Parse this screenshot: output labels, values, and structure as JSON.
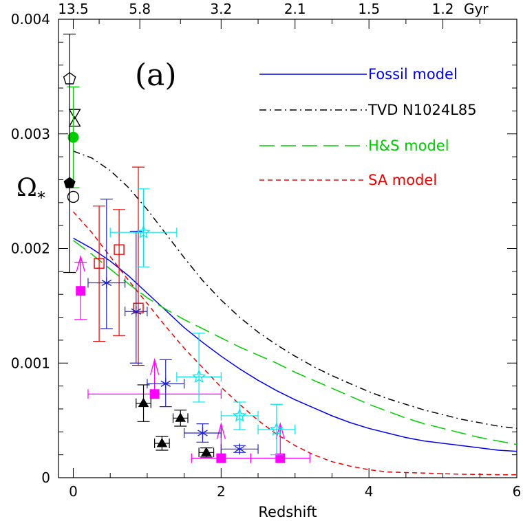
{
  "chart_data": {
    "type": "scatter",
    "panel_label": "(a)",
    "xlabel": "Redshift",
    "ylabel": "Ω",
    "ylabel_subscript": "*",
    "xlim": [
      -0.2,
      6
    ],
    "ylim": [
      0,
      0.004
    ],
    "x_ticks": [
      "0",
      "2",
      "4",
      "6"
    ],
    "y_ticks": [
      "0",
      "0.001",
      "0.002",
      "0.003",
      "0.004"
    ],
    "top_axis": {
      "unit": "Gyr",
      "labels": [
        "13.5",
        "5.8",
        "3.2",
        "2.1",
        "1.5",
        "1.2"
      ],
      "at_redshift": [
        0,
        0.9,
        2.0,
        3.0,
        4.0,
        5.0
      ]
    },
    "curves": [
      {
        "name": "Fossil model",
        "color": "#0000ee",
        "dash": "none",
        "x": [
          0,
          0.25,
          0.5,
          0.75,
          1,
          1.25,
          1.5,
          1.75,
          2,
          2.25,
          2.5,
          2.75,
          3,
          3.25,
          3.5,
          3.75,
          4,
          4.25,
          4.5,
          4.75,
          5,
          5.25,
          5.5,
          5.75,
          6
        ],
        "y": [
          0.00209,
          0.002,
          0.00189,
          0.00176,
          0.00161,
          0.00146,
          0.00131,
          0.00118,
          0.00106,
          0.00095,
          0.00085,
          0.00076,
          0.00068,
          0.00061,
          0.00054,
          0.00048,
          0.00043,
          0.00039,
          0.00035,
          0.00032,
          0.0003,
          0.00028,
          0.00026,
          0.00024,
          0.00023
        ]
      },
      {
        "name": "TVD N1024L85",
        "color": "#000000",
        "dash": "10,5,2,5",
        "x": [
          0,
          0.25,
          0.5,
          0.75,
          1,
          1.25,
          1.5,
          1.75,
          2,
          2.25,
          2.5,
          2.75,
          3,
          3.25,
          3.5,
          3.75,
          4,
          4.25,
          4.5,
          4.75,
          5,
          5.25,
          5.5,
          5.75,
          6
        ],
        "y": [
          0.00285,
          0.00279,
          0.00268,
          0.00253,
          0.00234,
          0.00213,
          0.00192,
          0.00172,
          0.00155,
          0.0014,
          0.00127,
          0.00116,
          0.00106,
          0.00097,
          0.00089,
          0.00082,
          0.00075,
          0.00069,
          0.00064,
          0.00059,
          0.00055,
          0.00051,
          0.00048,
          0.00045,
          0.00043
        ]
      },
      {
        "name": "H&S model",
        "color": "#00cc00",
        "dash": "22,9",
        "x": [
          0,
          0.25,
          0.5,
          0.75,
          1,
          1.25,
          1.5,
          1.75,
          2,
          2.25,
          2.5,
          2.75,
          3,
          3.25,
          3.5,
          3.75,
          4,
          4.25,
          4.5,
          4.75,
          5,
          5.25,
          5.5,
          5.75,
          6
        ],
        "y": [
          0.00207,
          0.00195,
          0.00182,
          0.00169,
          0.00157,
          0.00147,
          0.00138,
          0.0013,
          0.00122,
          0.00114,
          0.00107,
          0.001,
          0.00092,
          0.00085,
          0.00078,
          0.00071,
          0.00064,
          0.00058,
          0.00052,
          0.00047,
          0.00043,
          0.00039,
          0.00035,
          0.00032,
          0.00029
        ]
      },
      {
        "name": "SA model",
        "color": "#ee0000",
        "dash": "7,5",
        "x": [
          0,
          0.25,
          0.5,
          0.75,
          1,
          1.25,
          1.5,
          1.75,
          2,
          2.25,
          2.5,
          2.75,
          3,
          3.25,
          3.5,
          3.75,
          4,
          4.25,
          4.5,
          4.75,
          5,
          5.25,
          5.5,
          5.75,
          6
        ],
        "y": [
          0.00232,
          0.00214,
          0.00193,
          0.00172,
          0.00152,
          0.00132,
          0.00113,
          0.00096,
          0.00079,
          0.00064,
          0.0005,
          0.00038,
          0.00028,
          0.0002,
          0.00014,
          0.0001,
          7e-05,
          5e-05,
          4.5e-05,
          4e-05,
          3.5e-05,
          3e-05,
          2.8e-05,
          2.6e-05,
          2.5e-05
        ]
      }
    ],
    "points": [
      {
        "marker": "open-pentagon",
        "color": "#000000",
        "x": -0.05,
        "y": 0.00348
      },
      {
        "marker": "open-triangle-down",
        "color": "#000000",
        "x": 0.02,
        "y": 0.00318
      },
      {
        "marker": "open-triangle-up",
        "color": "#000000",
        "x": 0.02,
        "y": 0.0031
      },
      {
        "marker": "filled-circle",
        "color": "#00cc00",
        "x": 0.0,
        "y": 0.00297,
        "yerr": [
          0.00044,
          0.00044
        ]
      },
      {
        "marker": "filled-pentagon",
        "color": "#000000",
        "x": -0.05,
        "y": 0.00257
      },
      {
        "marker": "open-circle",
        "color": "#000000",
        "x": 0.0,
        "y": 0.00245
      },
      {
        "marker": "none",
        "color": "#000000",
        "x": -0.05,
        "y": 0.00283,
        "yerr": [
          0.00104,
          0.00104
        ]
      },
      {
        "marker": "filled-square",
        "color": "#ff00ff",
        "x": 0.1,
        "y": 0.00163,
        "yerr": [
          0.00025,
          0.00025
        ],
        "arrow_up": true
      },
      {
        "marker": "filled-square",
        "color": "#ff00ff",
        "x": 1.1,
        "y": 0.00073,
        "xerr": [
          0.9,
          0.9
        ],
        "arrow_up": true
      },
      {
        "marker": "filled-square",
        "color": "#ff00ff",
        "x": 2.0,
        "y": 0.00017,
        "xerr": [
          0.4,
          0.4
        ],
        "arrow_up": true
      },
      {
        "marker": "filled-square",
        "color": "#ff00ff",
        "x": 2.8,
        "y": 0.00017,
        "xerr": [
          0.4,
          0.4
        ],
        "arrow_up": true
      },
      {
        "marker": "open-square",
        "color": "#ee0000",
        "x": 0.35,
        "y": 0.00187,
        "yerr": [
          0.00068,
          0.0005
        ]
      },
      {
        "marker": "open-square",
        "color": "#ee0000",
        "x": 0.62,
        "y": 0.00199,
        "yerr": [
          0.00075,
          0.00035
        ]
      },
      {
        "marker": "open-square",
        "color": "#ee0000",
        "x": 0.88,
        "y": 0.00148,
        "yerr": [
          0.0005,
          0.00123
        ]
      },
      {
        "marker": "asterisk",
        "color": "#2222cc",
        "x": 0.45,
        "y": 0.0017,
        "xerr": [
          0.25,
          0.25
        ],
        "yerr": [
          0.0004,
          0.00073
        ]
      },
      {
        "marker": "asterisk",
        "color": "#2222cc",
        "x": 0.85,
        "y": 0.00145,
        "xerr": [
          0.15,
          0.15
        ],
        "yerr": [
          0.00045,
          0.0007
        ]
      },
      {
        "marker": "asterisk",
        "color": "#2222cc",
        "x": 1.25,
        "y": 0.00082,
        "xerr": [
          0.25,
          0.25
        ],
        "yerr": [
          0.0002,
          0.00021
        ]
      },
      {
        "marker": "asterisk",
        "color": "#2222cc",
        "x": 1.75,
        "y": 0.00039,
        "xerr": [
          0.25,
          0.25
        ],
        "yerr": [
          8e-05,
          8e-05
        ]
      },
      {
        "marker": "asterisk",
        "color": "#2222cc",
        "x": 2.25,
        "y": 0.00025,
        "xerr": [
          0.25,
          0.25
        ],
        "yerr": [
          3e-05,
          3e-05
        ]
      },
      {
        "marker": "open-star",
        "color": "#00e5ee",
        "x": 0.95,
        "y": 0.00214,
        "xerr": [
          0.45,
          0.45
        ],
        "yerr": [
          0.0003,
          0.00038
        ]
      },
      {
        "marker": "open-star",
        "color": "#00e5ee",
        "x": 1.7,
        "y": 0.00088,
        "xerr": [
          0.3,
          0.3
        ],
        "yerr": [
          0.00022,
          0.00038
        ]
      },
      {
        "marker": "open-star",
        "color": "#00e5ee",
        "x": 2.25,
        "y": 0.00054,
        "xerr": [
          0.25,
          0.25
        ],
        "yerr": [
          0.00012,
          0.00012
        ]
      },
      {
        "marker": "open-star",
        "color": "#00e5ee",
        "x": 2.75,
        "y": 0.00042,
        "xerr": [
          0.25,
          0.25
        ],
        "yerr": [
          0.00022,
          0.00022
        ]
      },
      {
        "marker": "filled-triangle",
        "color": "#000000",
        "x": 0.95,
        "y": 0.00065,
        "xerr": [
          0.1,
          0.1
        ],
        "yerr": [
          0.00016,
          0.00016
        ]
      },
      {
        "marker": "filled-triangle",
        "color": "#000000",
        "x": 1.2,
        "y": 0.0003,
        "xerr": [
          0.1,
          0.1
        ],
        "yerr": [
          6e-05,
          6e-05
        ]
      },
      {
        "marker": "filled-triangle",
        "color": "#000000",
        "x": 1.45,
        "y": 0.00052,
        "xerr": [
          0.1,
          0.1
        ],
        "yerr": [
          7e-05,
          7e-05
        ]
      },
      {
        "marker": "filled-triangle",
        "color": "#000000",
        "x": 1.8,
        "y": 0.00022,
        "xerr": [
          0.1,
          0.1
        ],
        "yerr": [
          4e-05,
          4e-05
        ]
      }
    ]
  }
}
